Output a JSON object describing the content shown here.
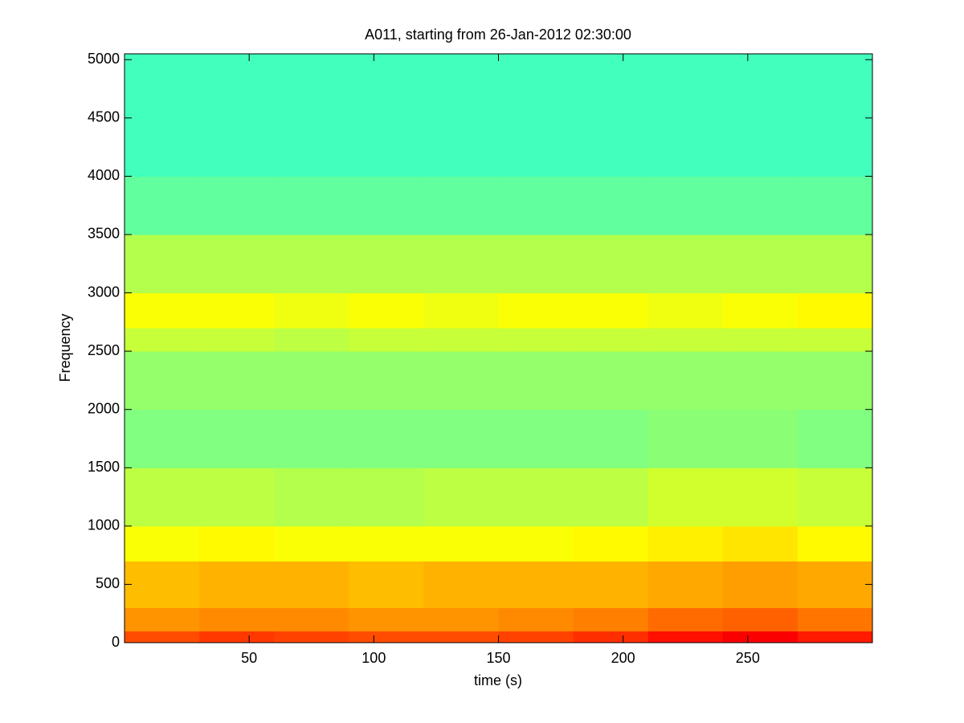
{
  "chart_data": {
    "type": "heatmap",
    "title": "A011, starting from 26-Jan-2012 02:30:00",
    "x_label": "time (s)",
    "y_label": "Frequency",
    "xlim": [
      0,
      300
    ],
    "ylim": [
      0,
      5050
    ],
    "xticks": [
      50,
      100,
      150,
      200,
      250
    ],
    "yticks": [
      0,
      500,
      1000,
      1500,
      2000,
      2500,
      3000,
      3500,
      4000,
      4500,
      5000
    ],
    "colormap": "jet",
    "clim": [
      0,
      1
    ],
    "x_bins": [
      0,
      30,
      60,
      90,
      120,
      150,
      180,
      210,
      240,
      270,
      300
    ],
    "y_bins": [
      0,
      100,
      300,
      700,
      1000,
      1500,
      2000,
      2500,
      2700,
      3000,
      3500,
      4000,
      5050
    ],
    "z": [
      [
        0.8,
        0.82,
        0.81,
        0.8,
        0.8,
        0.81,
        0.83,
        0.86,
        0.88,
        0.85
      ],
      [
        0.73,
        0.74,
        0.74,
        0.73,
        0.73,
        0.74,
        0.75,
        0.77,
        0.78,
        0.76
      ],
      [
        0.69,
        0.7,
        0.7,
        0.69,
        0.7,
        0.7,
        0.7,
        0.71,
        0.72,
        0.71
      ],
      [
        0.62,
        0.63,
        0.62,
        0.62,
        0.62,
        0.62,
        0.63,
        0.64,
        0.65,
        0.63
      ],
      [
        0.56,
        0.56,
        0.55,
        0.55,
        0.56,
        0.56,
        0.56,
        0.58,
        0.58,
        0.57
      ],
      [
        0.5,
        0.5,
        0.5,
        0.5,
        0.5,
        0.5,
        0.5,
        0.51,
        0.51,
        0.5
      ],
      [
        0.52,
        0.52,
        0.52,
        0.52,
        0.52,
        0.52,
        0.52,
        0.52,
        0.52,
        0.52
      ],
      [
        0.57,
        0.57,
        0.56,
        0.57,
        0.57,
        0.57,
        0.57,
        0.57,
        0.57,
        0.57
      ],
      [
        0.62,
        0.62,
        0.61,
        0.62,
        0.61,
        0.62,
        0.62,
        0.61,
        0.62,
        0.63
      ],
      [
        0.55,
        0.55,
        0.55,
        0.55,
        0.55,
        0.55,
        0.55,
        0.55,
        0.55,
        0.55
      ],
      [
        0.47,
        0.47,
        0.47,
        0.47,
        0.47,
        0.47,
        0.47,
        0.47,
        0.47,
        0.47
      ],
      [
        0.44,
        0.44,
        0.44,
        0.44,
        0.44,
        0.44,
        0.44,
        0.44,
        0.44,
        0.44
      ]
    ]
  }
}
